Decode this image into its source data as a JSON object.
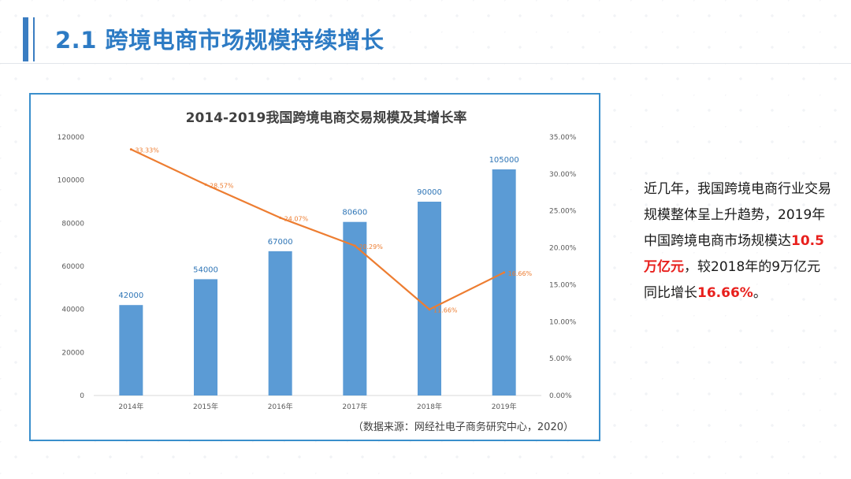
{
  "page": {
    "title": "2.1 跨境电商市场规模持续增长"
  },
  "colors": {
    "accent": "#3a7dc2",
    "bar": "#5b9bd5",
    "line": "#ed7d31",
    "highlight": "#e8201d"
  },
  "chart_data": {
    "type": "bar",
    "title": "2014-2019我国跨境电商交易规模及其增长率",
    "categories": [
      "2014年",
      "2015年",
      "2016年",
      "2017年",
      "2018年",
      "2019年"
    ],
    "series": [
      {
        "values": [
          42000,
          54000,
          67000,
          80600,
          90000,
          105000
        ],
        "axis": "left",
        "kind": "bar"
      },
      {
        "values": [
          33.33,
          28.57,
          24.07,
          20.29,
          11.66,
          16.66
        ],
        "axis": "right",
        "kind": "line"
      }
    ],
    "bar_labels": [
      "42000",
      "54000",
      "67000",
      "80600",
      "90000",
      "105000"
    ],
    "line_labels": [
      "33.33%",
      "28.57%",
      "24.07%",
      "20.29%",
      "11.66%",
      "16.66%"
    ],
    "y_left": {
      "lim": [
        0,
        120000
      ],
      "ticks": [
        "0",
        "20000",
        "40000",
        "60000",
        "80000",
        "100000",
        "120000"
      ]
    },
    "y_right": {
      "lim": [
        0,
        35
      ],
      "ticks": [
        "0.00%",
        "5.00%",
        "10.00%",
        "15.00%",
        "20.00%",
        "25.00%",
        "30.00%",
        "35.00%"
      ]
    },
    "grid": false,
    "legend": "none"
  },
  "source_note": "（数据来源：网经社电子商务研究中心，2020）",
  "side": {
    "t1": "近几年，我国跨境电商行业交易规模整体呈上升趋势，2019年中国跨境电商市场规模达",
    "h1": "10.5万亿元",
    "t2": "，较2018年的9万亿元同比增长",
    "h2": "16.66%",
    "t3": "。"
  }
}
